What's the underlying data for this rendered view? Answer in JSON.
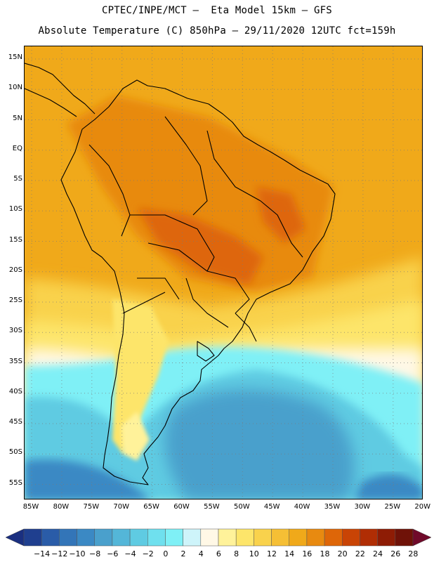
{
  "header": {
    "line1": "CPTEC/INPE/MCT –  Eta Model 15km – GFS",
    "line2": "Absolute Temperature (C) 850hPa – 29/11/2020 12UTC fct=159h"
  },
  "map": {
    "lat_labels": [
      "15N",
      "10N",
      "5N",
      "EQ",
      "5S",
      "10S",
      "15S",
      "20S",
      "25S",
      "30S",
      "35S",
      "40S",
      "45S",
      "50S",
      "55S"
    ],
    "lon_labels": [
      "85W",
      "80W",
      "75W",
      "70W",
      "65W",
      "60W",
      "55W",
      "50W",
      "45W",
      "40W",
      "35W",
      "30W",
      "25W",
      "20W"
    ]
  },
  "colorbar": {
    "labels": [
      "-14",
      "-12",
      "-10",
      "-8",
      "-6",
      "-4",
      "-2",
      "0",
      "2",
      "4",
      "6",
      "8",
      "10",
      "12",
      "14",
      "16",
      "18",
      "20",
      "22",
      "24",
      "26",
      "28"
    ],
    "colors": [
      "#1f3f8f",
      "#2a5ca8",
      "#3375b8",
      "#3b89c4",
      "#4aa0cc",
      "#54b6d8",
      "#5fcbe2",
      "#6fe0ee",
      "#7ff0f6",
      "#cef4fa",
      "#fff8e6",
      "#fff29a",
      "#fde56a",
      "#f9d24c",
      "#f5bf35",
      "#f0a91a",
      "#e88a10",
      "#de6608",
      "#c94405",
      "#b02d04",
      "#8e1c05",
      "#6f1208"
    ]
  }
}
